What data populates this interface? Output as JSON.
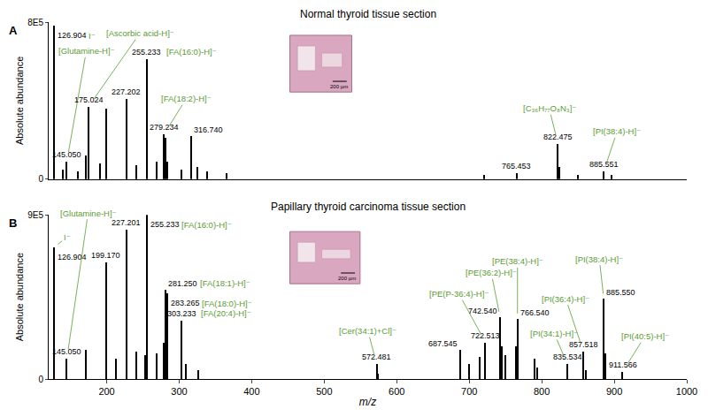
{
  "chart_data": [
    {
      "type": "bar",
      "panel_label": "A",
      "title": "Normal thyroid tissue section",
      "y_label": "Absolute abundance",
      "color": "#000000",
      "grid": false,
      "tick_labels": "y",
      "inset_label": "200 µm",
      "x": [
        126.904,
        140.0,
        145.05,
        160.0,
        171.0,
        175.024,
        191.0,
        199.17,
        227.202,
        241.0,
        255.233,
        269.0,
        279.234,
        281.25,
        283.26,
        303.23,
        316.74,
        325.0,
        339.0,
        365.0,
        720.5,
        765.453,
        822.475,
        824.47,
        850.6,
        885.551,
        897.0
      ],
      "values": [
        780000,
        50000,
        90000,
        40000,
        120000,
        370000,
        80000,
        360000,
        410000,
        70000,
        610000,
        90000,
        230000,
        210000,
        90000,
        50000,
        220000,
        60000,
        40000,
        30000,
        20000,
        30000,
        180000,
        60000,
        20000,
        40000,
        20000
      ],
      "xlim": [
        120,
        1000
      ],
      "ylim": [
        0,
        800000
      ],
      "yticks": [
        0,
        {
          "value": 800000,
          "label": "8E5"
        }
      ],
      "annotations": [
        {
          "x": 126.904,
          "label": "126.904",
          "name": "I⁻"
        },
        {
          "x": 145.05,
          "label": "145.050",
          "name": "[Glutamine-H]⁻"
        },
        {
          "x": 175.024,
          "label": "175.024",
          "name": "[Ascorbic acid-H]⁻"
        },
        {
          "x": 227.202,
          "label": "227.202"
        },
        {
          "x": 255.233,
          "label": "255.233",
          "name": "[FA(16:0)-H]⁻"
        },
        {
          "x": 279.234,
          "label": "279.234",
          "name": "[FA(18:2)-H]⁻"
        },
        {
          "x": 316.74,
          "label": "316.740"
        },
        {
          "x": 765.453,
          "label": "765.453"
        },
        {
          "x": 822.475,
          "label": "822.475",
          "name": "[C₃₆H₇₇O₈N₃]⁻"
        },
        {
          "x": 885.551,
          "label": "885.551",
          "name": "[PI(38:4)-H]⁻"
        }
      ]
    },
    {
      "type": "bar",
      "panel_label": "B",
      "title": "Papillary thyroid carcinoma tissue section",
      "y_label": "Absolute abundance",
      "x_label": "m/z",
      "color": "#000000",
      "grid": false,
      "inset_label": "200 µm",
      "x": [
        126.904,
        145.05,
        171.0,
        199.17,
        213.0,
        227.201,
        241.0,
        253.2,
        255.233,
        269.2,
        279.23,
        281.25,
        283.265,
        303.233,
        309.0,
        327.0,
        572.481,
        574.5,
        687.545,
        700.5,
        714.5,
        722.513,
        742.54,
        744.5,
        750.5,
        764.5,
        766.54,
        790.5,
        794.5,
        835.534,
        857.518,
        861.5,
        885.55,
        887.5,
        911.566
      ],
      "values": [
        720000,
        110000,
        160000,
        640000,
        110000,
        820000,
        150000,
        130000,
        900000,
        140000,
        200000,
        490000,
        470000,
        320000,
        80000,
        50000,
        80000,
        30000,
        160000,
        80000,
        120000,
        200000,
        340000,
        180000,
        130000,
        180000,
        330000,
        110000,
        60000,
        80000,
        150000,
        50000,
        440000,
        140000,
        40000
      ],
      "xlim": [
        120,
        1000
      ],
      "ylim": [
        0,
        900000
      ],
      "xticks": [
        200,
        300,
        400,
        500,
        600,
        700,
        800,
        900,
        1000
      ],
      "yticks": [
        0,
        {
          "value": 900000,
          "label": "9E5"
        }
      ],
      "annotations": [
        {
          "x": 126.904,
          "label": "126.904",
          "name": "I⁻"
        },
        {
          "x": 145.05,
          "label": "145.050",
          "name": "[Glutamine-H]⁻"
        },
        {
          "x": 199.17,
          "label": "199.170"
        },
        {
          "x": 227.201,
          "label": "227.201"
        },
        {
          "x": 255.233,
          "label": "255.233",
          "name": "[FA(16:0)-H]⁻"
        },
        {
          "x": 281.25,
          "label": "281.250",
          "name": "[FA(18:1)-H]⁻"
        },
        {
          "x": 283.265,
          "label": "283.265",
          "name": "[FA(18:0)-H]⁻"
        },
        {
          "x": 303.233,
          "label": "303.233",
          "name": "[FA(20:4)-H]⁻"
        },
        {
          "x": 572.481,
          "label": "572.481",
          "name": "[Cer(34:1)+Cl]⁻"
        },
        {
          "x": 687.545,
          "label": "687.545"
        },
        {
          "x": 722.513,
          "label": "722.513",
          "name": "[PE(P-36:4)-H]⁻"
        },
        {
          "x": 742.54,
          "label": "742.540",
          "name": "[PE(36:2)-H]⁻"
        },
        {
          "x": 766.54,
          "label": "766.540",
          "name": "[PE(38:4)-H]⁻"
        },
        {
          "x": 835.534,
          "label": "835.534",
          "name": "[PI(34:1)-H]⁻"
        },
        {
          "x": 857.518,
          "label": "857.518",
          "name": "[PI(36:4)-H]⁻"
        },
        {
          "x": 885.55,
          "label": "885.550",
          "name": "[PI(38:4)-H]⁻"
        },
        {
          "x": 911.566,
          "label": "911.566",
          "name": "[PI(40:5)-H]⁻"
        }
      ]
    }
  ]
}
